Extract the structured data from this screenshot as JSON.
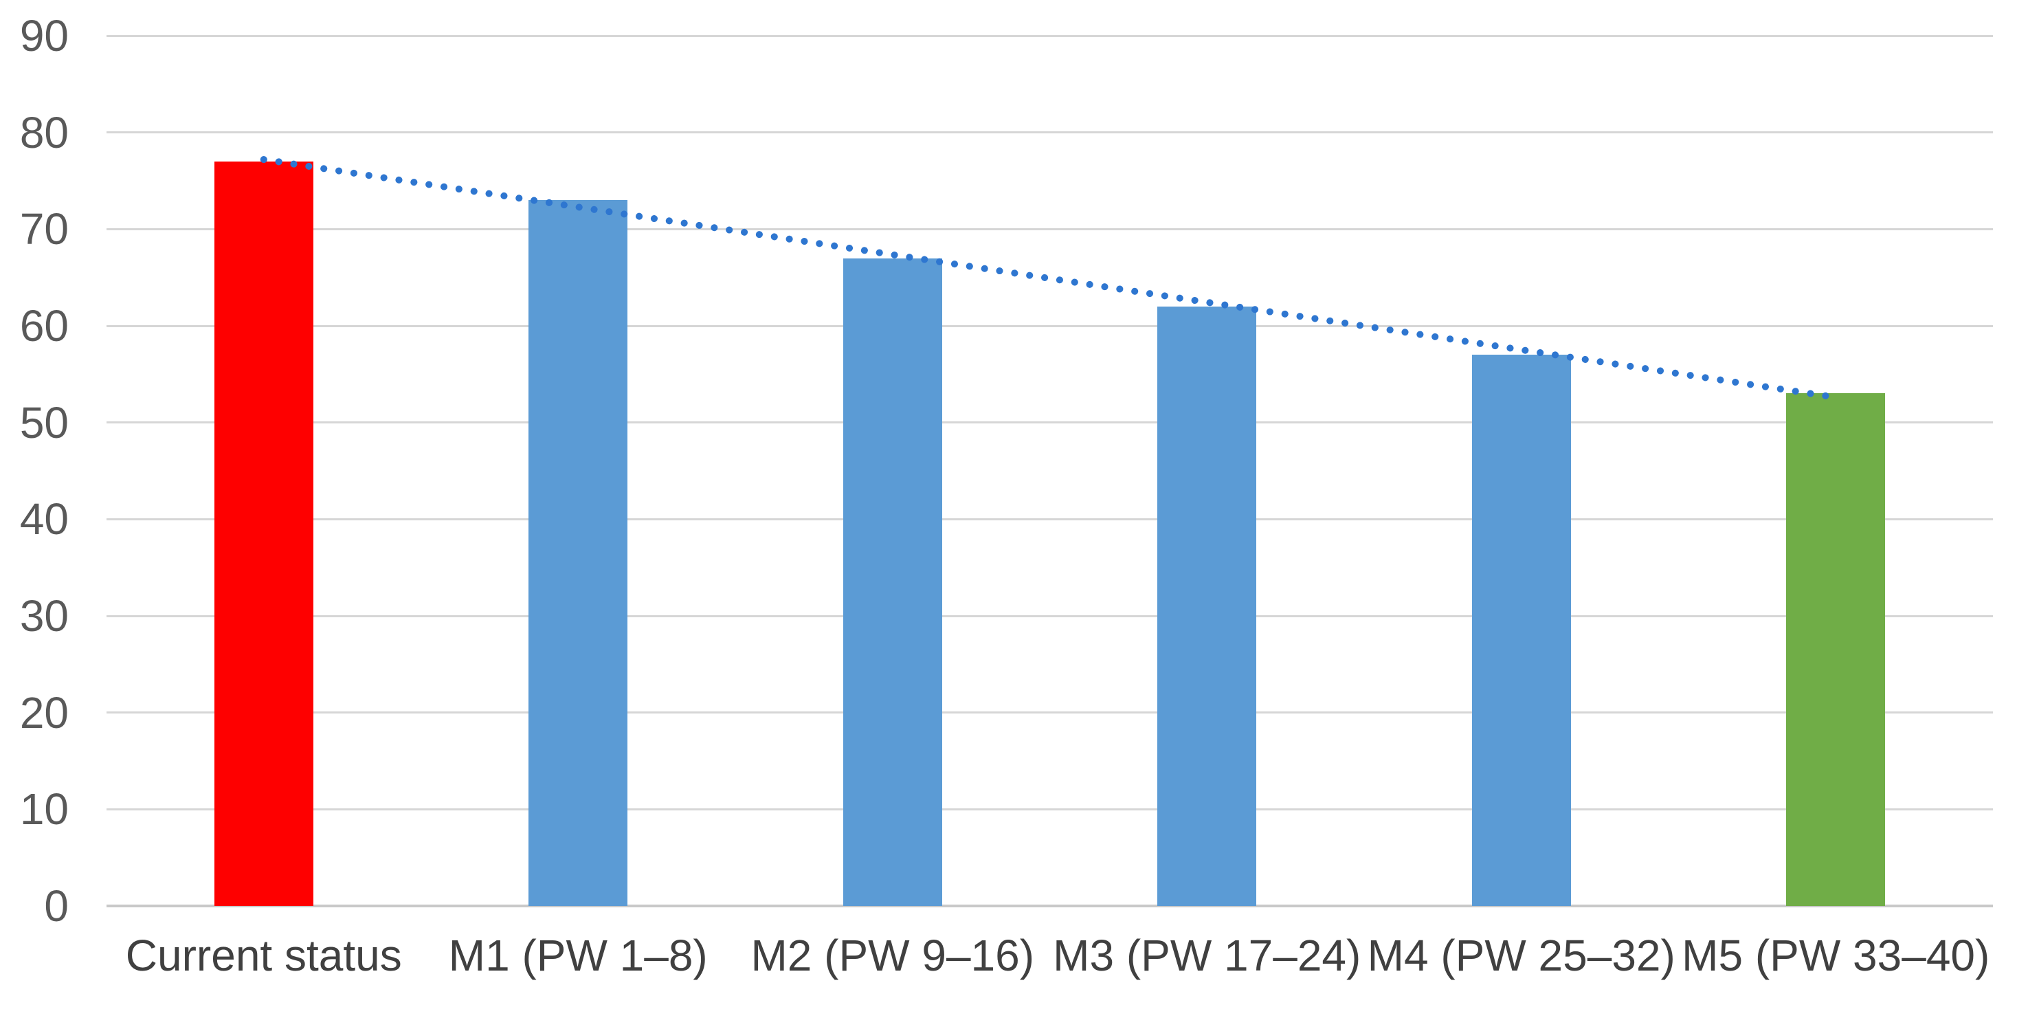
{
  "chart_data": {
    "type": "bar",
    "title": "",
    "xlabel": "",
    "ylabel": "",
    "categories": [
      "Current status",
      "M1 (PW 1–8)",
      "M2 (PW 9–16)",
      "M3 (PW 17–24)",
      "M4 (PW 25–32)",
      "M5 (PW 33–40)"
    ],
    "values": [
      77,
      73,
      67,
      62,
      57,
      53
    ],
    "bar_colors": [
      "#fe0000",
      "#5b9bd5",
      "#5b9bd5",
      "#5b9bd5",
      "#5b9bd5",
      "#70ad47"
    ],
    "ylim": [
      0,
      90
    ],
    "yticks": [
      0,
      10,
      20,
      30,
      40,
      50,
      60,
      70,
      80,
      90
    ],
    "grid": true,
    "legend_position": "none",
    "colors": {
      "gridline": "#d6d6d6",
      "axis_line": "#c9c9c9",
      "y_tick_label": "#595959",
      "x_tick_label": "#404040",
      "trendline": "#2e76d0"
    },
    "trendline": {
      "type": "linear",
      "line_style": "dotted",
      "color": "#2e76d0",
      "start_value": 77.2,
      "end_value": 52.6
    }
  }
}
